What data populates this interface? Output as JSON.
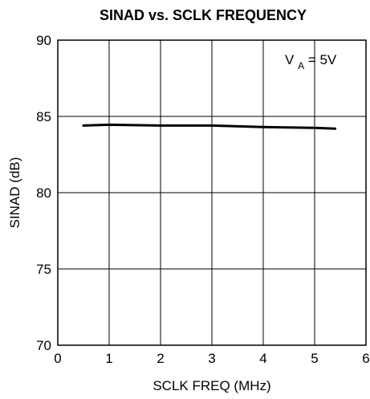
{
  "chart_data": {
    "type": "line",
    "title": "SINAD vs. SCLK FREQUENCY",
    "xlabel": "SCLK FREQ (MHz)",
    "ylabel": "SINAD (dB)",
    "xlim": [
      0,
      6
    ],
    "ylim": [
      70,
      90
    ],
    "x_ticks": [
      0,
      1,
      2,
      3,
      4,
      5,
      6
    ],
    "y_ticks": [
      70,
      75,
      80,
      85,
      90
    ],
    "grid": true,
    "legend": "none",
    "annotation": {
      "main": "V",
      "subscript": "A",
      "suffix": " = 5V"
    },
    "series": [
      {
        "x": [
          0.5,
          1.0,
          2.0,
          3.0,
          4.0,
          5.0,
          5.4
        ],
        "y": [
          84.4,
          84.45,
          84.4,
          84.4,
          84.3,
          84.25,
          84.2
        ],
        "color": "#000000"
      }
    ]
  }
}
